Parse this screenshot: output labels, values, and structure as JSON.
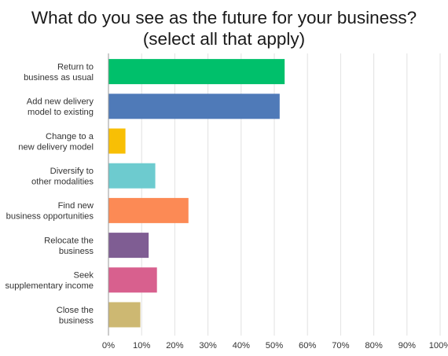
{
  "title_line1": "What do you see as the future for your business?",
  "title_line2": "(select all that apply)",
  "chart_data": {
    "type": "bar",
    "orientation": "horizontal",
    "categories": [
      [
        "Return to",
        "business as usual"
      ],
      [
        "Add new delivery",
        "model to existing"
      ],
      [
        "Change to a",
        "new delivery model"
      ],
      [
        "Diversify to",
        "other modalities"
      ],
      [
        "Find new",
        "business opportunities"
      ],
      [
        "Relocate the",
        "business"
      ],
      [
        "Seek",
        "supplementary income"
      ],
      [
        "Close the",
        "business"
      ]
    ],
    "values": [
      53,
      51.5,
      5,
      14,
      24,
      12,
      14.5,
      9.5
    ],
    "colors": [
      "#00c06b",
      "#4f7ab8",
      "#f8bf05",
      "#6dcbcf",
      "#fc8a55",
      "#7f5d93",
      "#d8608e",
      "#cdb872"
    ],
    "xlim": [
      0,
      100
    ],
    "xticks": [
      "0%",
      "10%",
      "20%",
      "30%",
      "40%",
      "50%",
      "60%",
      "70%",
      "80%",
      "90%",
      "100%"
    ],
    "grid": true,
    "legend": "none"
  }
}
